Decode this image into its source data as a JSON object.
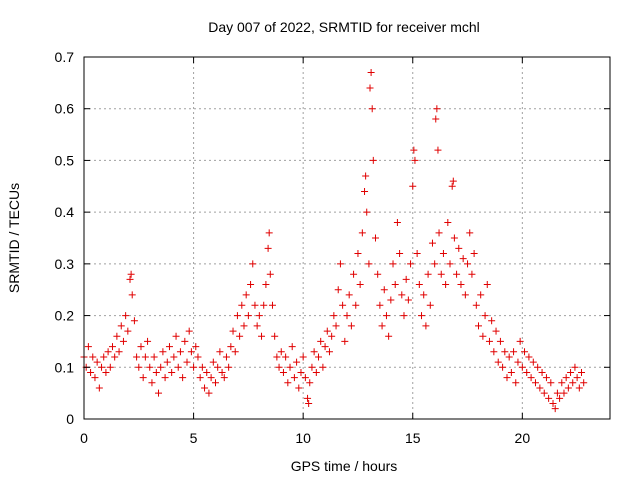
{
  "chart_data": {
    "type": "scatter",
    "title": "Day 007 of 2022, SRMTID for receiver mchl",
    "xlabel": "GPS time / hours",
    "ylabel": "SRMTID / TECUs",
    "xlim": [
      0,
      24
    ],
    "ylim": [
      0,
      0.7
    ],
    "xticks": [
      0,
      5,
      10,
      15,
      20
    ],
    "xtick_labels": [
      "0",
      "5",
      "10",
      "15",
      "20"
    ],
    "yticks": [
      0,
      0.1,
      0.2,
      0.3,
      0.4,
      0.5,
      0.6,
      0.7
    ],
    "ytick_labels": [
      "0",
      "0.1",
      "0.2",
      "0.3",
      "0.4",
      "0.5",
      "0.6",
      "0.7"
    ],
    "grid": true,
    "marker": "plus",
    "color": "#e00000",
    "series": [
      {
        "name": "SRMTID",
        "points": [
          [
            0.0,
            0.12
          ],
          [
            0.1,
            0.1
          ],
          [
            0.2,
            0.14
          ],
          [
            0.3,
            0.09
          ],
          [
            0.4,
            0.12
          ],
          [
            0.5,
            0.08
          ],
          [
            0.6,
            0.11
          ],
          [
            0.7,
            0.06
          ],
          [
            0.8,
            0.1
          ],
          [
            0.9,
            0.12
          ],
          [
            1.0,
            0.09
          ],
          [
            1.1,
            0.13
          ],
          [
            1.2,
            0.1
          ],
          [
            1.3,
            0.14
          ],
          [
            1.4,
            0.12
          ],
          [
            1.5,
            0.16
          ],
          [
            1.6,
            0.13
          ],
          [
            1.7,
            0.18
          ],
          [
            1.8,
            0.15
          ],
          [
            1.9,
            0.2
          ],
          [
            2.0,
            0.17
          ],
          [
            2.1,
            0.27
          ],
          [
            2.15,
            0.28
          ],
          [
            2.2,
            0.24
          ],
          [
            2.3,
            0.19
          ],
          [
            2.4,
            0.12
          ],
          [
            2.5,
            0.1
          ],
          [
            2.6,
            0.14
          ],
          [
            2.7,
            0.08
          ],
          [
            2.8,
            0.12
          ],
          [
            2.9,
            0.15
          ],
          [
            3.0,
            0.1
          ],
          [
            3.1,
            0.07
          ],
          [
            3.2,
            0.12
          ],
          [
            3.3,
            0.09
          ],
          [
            3.4,
            0.05
          ],
          [
            3.5,
            0.1
          ],
          [
            3.6,
            0.13
          ],
          [
            3.7,
            0.08
          ],
          [
            3.8,
            0.11
          ],
          [
            3.9,
            0.14
          ],
          [
            4.0,
            0.09
          ],
          [
            4.1,
            0.12
          ],
          [
            4.2,
            0.16
          ],
          [
            4.3,
            0.1
          ],
          [
            4.4,
            0.13
          ],
          [
            4.5,
            0.08
          ],
          [
            4.6,
            0.15
          ],
          [
            4.7,
            0.11
          ],
          [
            4.8,
            0.17
          ],
          [
            4.9,
            0.13
          ],
          [
            5.0,
            0.1
          ],
          [
            5.1,
            0.14
          ],
          [
            5.2,
            0.12
          ],
          [
            5.3,
            0.08
          ],
          [
            5.4,
            0.1
          ],
          [
            5.5,
            0.06
          ],
          [
            5.6,
            0.09
          ],
          [
            5.7,
            0.05
          ],
          [
            5.8,
            0.08
          ],
          [
            5.9,
            0.11
          ],
          [
            6.0,
            0.07
          ],
          [
            6.1,
            0.1
          ],
          [
            6.2,
            0.13
          ],
          [
            6.3,
            0.09
          ],
          [
            6.4,
            0.08
          ],
          [
            6.5,
            0.12
          ],
          [
            6.6,
            0.1
          ],
          [
            6.7,
            0.14
          ],
          [
            6.8,
            0.17
          ],
          [
            6.9,
            0.13
          ],
          [
            7.0,
            0.2
          ],
          [
            7.1,
            0.16
          ],
          [
            7.2,
            0.22
          ],
          [
            7.3,
            0.18
          ],
          [
            7.4,
            0.24
          ],
          [
            7.5,
            0.2
          ],
          [
            7.6,
            0.26
          ],
          [
            7.7,
            0.3
          ],
          [
            7.8,
            0.22
          ],
          [
            7.9,
            0.18
          ],
          [
            8.0,
            0.2
          ],
          [
            8.1,
            0.16
          ],
          [
            8.2,
            0.22
          ],
          [
            8.3,
            0.26
          ],
          [
            8.4,
            0.33
          ],
          [
            8.45,
            0.36
          ],
          [
            8.5,
            0.28
          ],
          [
            8.6,
            0.22
          ],
          [
            8.7,
            0.16
          ],
          [
            8.8,
            0.12
          ],
          [
            8.9,
            0.1
          ],
          [
            9.0,
            0.13
          ],
          [
            9.1,
            0.09
          ],
          [
            9.2,
            0.12
          ],
          [
            9.3,
            0.07
          ],
          [
            9.4,
            0.1
          ],
          [
            9.5,
            0.14
          ],
          [
            9.6,
            0.08
          ],
          [
            9.7,
            0.11
          ],
          [
            9.8,
            0.06
          ],
          [
            9.9,
            0.09
          ],
          [
            10.0,
            0.12
          ],
          [
            10.1,
            0.08
          ],
          [
            10.2,
            0.04
          ],
          [
            10.25,
            0.03
          ],
          [
            10.3,
            0.07
          ],
          [
            10.4,
            0.1
          ],
          [
            10.5,
            0.13
          ],
          [
            10.6,
            0.09
          ],
          [
            10.7,
            0.12
          ],
          [
            10.8,
            0.15
          ],
          [
            10.9,
            0.1
          ],
          [
            11.0,
            0.14
          ],
          [
            11.1,
            0.17
          ],
          [
            11.2,
            0.13
          ],
          [
            11.3,
            0.16
          ],
          [
            11.4,
            0.2
          ],
          [
            11.5,
            0.18
          ],
          [
            11.6,
            0.25
          ],
          [
            11.7,
            0.3
          ],
          [
            11.8,
            0.22
          ],
          [
            11.9,
            0.15
          ],
          [
            12.0,
            0.2
          ],
          [
            12.1,
            0.24
          ],
          [
            12.2,
            0.18
          ],
          [
            12.3,
            0.28
          ],
          [
            12.4,
            0.22
          ],
          [
            12.5,
            0.32
          ],
          [
            12.6,
            0.26
          ],
          [
            12.7,
            0.36
          ],
          [
            12.8,
            0.44
          ],
          [
            12.85,
            0.47
          ],
          [
            12.9,
            0.4
          ],
          [
            13.0,
            0.3
          ],
          [
            13.05,
            0.64
          ],
          [
            13.1,
            0.67
          ],
          [
            13.15,
            0.6
          ],
          [
            13.2,
            0.5
          ],
          [
            13.3,
            0.35
          ],
          [
            13.4,
            0.28
          ],
          [
            13.5,
            0.22
          ],
          [
            13.6,
            0.18
          ],
          [
            13.7,
            0.25
          ],
          [
            13.8,
            0.2
          ],
          [
            13.9,
            0.16
          ],
          [
            14.0,
            0.23
          ],
          [
            14.1,
            0.3
          ],
          [
            14.2,
            0.26
          ],
          [
            14.3,
            0.38
          ],
          [
            14.4,
            0.32
          ],
          [
            14.5,
            0.24
          ],
          [
            14.6,
            0.2
          ],
          [
            14.7,
            0.27
          ],
          [
            14.8,
            0.23
          ],
          [
            14.9,
            0.3
          ],
          [
            15.0,
            0.45
          ],
          [
            15.05,
            0.52
          ],
          [
            15.1,
            0.5
          ],
          [
            15.2,
            0.32
          ],
          [
            15.3,
            0.26
          ],
          [
            15.4,
            0.2
          ],
          [
            15.5,
            0.24
          ],
          [
            15.6,
            0.18
          ],
          [
            15.7,
            0.28
          ],
          [
            15.8,
            0.22
          ],
          [
            15.9,
            0.34
          ],
          [
            16.0,
            0.3
          ],
          [
            16.05,
            0.58
          ],
          [
            16.1,
            0.6
          ],
          [
            16.15,
            0.52
          ],
          [
            16.2,
            0.36
          ],
          [
            16.3,
            0.28
          ],
          [
            16.4,
            0.32
          ],
          [
            16.5,
            0.26
          ],
          [
            16.6,
            0.38
          ],
          [
            16.7,
            0.3
          ],
          [
            16.8,
            0.45
          ],
          [
            16.85,
            0.46
          ],
          [
            16.9,
            0.35
          ],
          [
            17.0,
            0.28
          ],
          [
            17.1,
            0.33
          ],
          [
            17.2,
            0.26
          ],
          [
            17.3,
            0.31
          ],
          [
            17.4,
            0.24
          ],
          [
            17.5,
            0.3
          ],
          [
            17.6,
            0.36
          ],
          [
            17.7,
            0.28
          ],
          [
            17.8,
            0.32
          ],
          [
            17.9,
            0.22
          ],
          [
            18.0,
            0.18
          ],
          [
            18.1,
            0.24
          ],
          [
            18.2,
            0.16
          ],
          [
            18.3,
            0.2
          ],
          [
            18.4,
            0.26
          ],
          [
            18.5,
            0.15
          ],
          [
            18.6,
            0.19
          ],
          [
            18.7,
            0.13
          ],
          [
            18.8,
            0.17
          ],
          [
            18.9,
            0.11
          ],
          [
            19.0,
            0.15
          ],
          [
            19.1,
            0.1
          ],
          [
            19.2,
            0.13
          ],
          [
            19.3,
            0.08
          ],
          [
            19.4,
            0.12
          ],
          [
            19.5,
            0.09
          ],
          [
            19.6,
            0.13
          ],
          [
            19.7,
            0.07
          ],
          [
            19.8,
            0.11
          ],
          [
            19.9,
            0.15
          ],
          [
            20.0,
            0.1
          ],
          [
            20.1,
            0.13
          ],
          [
            20.2,
            0.09
          ],
          [
            20.3,
            0.12
          ],
          [
            20.4,
            0.08
          ],
          [
            20.5,
            0.11
          ],
          [
            20.6,
            0.07
          ],
          [
            20.7,
            0.1
          ],
          [
            20.8,
            0.06
          ],
          [
            20.9,
            0.09
          ],
          [
            21.0,
            0.05
          ],
          [
            21.1,
            0.08
          ],
          [
            21.2,
            0.04
          ],
          [
            21.3,
            0.07
          ],
          [
            21.4,
            0.03
          ],
          [
            21.5,
            0.02
          ],
          [
            21.6,
            0.05
          ],
          [
            21.7,
            0.04
          ],
          [
            21.8,
            0.07
          ],
          [
            21.9,
            0.05
          ],
          [
            22.0,
            0.08
          ],
          [
            22.1,
            0.06
          ],
          [
            22.2,
            0.09
          ],
          [
            22.3,
            0.07
          ],
          [
            22.4,
            0.1
          ],
          [
            22.5,
            0.08
          ],
          [
            22.6,
            0.06
          ],
          [
            22.7,
            0.09
          ],
          [
            22.8,
            0.07
          ]
        ]
      }
    ]
  }
}
